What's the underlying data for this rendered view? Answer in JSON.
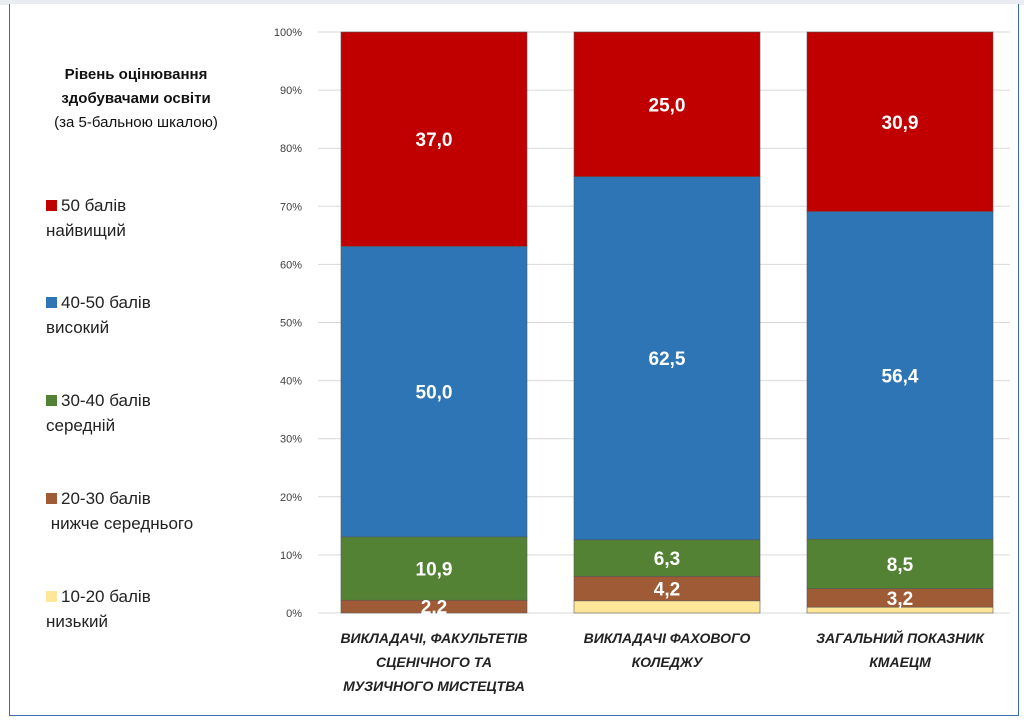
{
  "legend": {
    "title_line1": "Рівень оцінювання",
    "title_line2": "здобувачами освіти",
    "title_line3": "(за 5-бальною шкалою)",
    "items": [
      {
        "label": "50 балів",
        "desc": "найвищий",
        "color": "#c00000"
      },
      {
        "label": "40-50 балів",
        "desc": "високий",
        "color": "#2e75b6"
      },
      {
        "label": "30-40 балів",
        "desc": "середній",
        "color": "#548235"
      },
      {
        "label": "20-30 балів",
        "desc": " нижче середнього",
        "color": "#9e5b35"
      },
      {
        "label": "10-20 балів",
        "desc": "низький",
        "color": "#ffe699"
      }
    ]
  },
  "chart_data": {
    "type": "bar",
    "stacked": "percent",
    "categories": [
      [
        "ВИКЛАДАЧІ, ФАКУЛЬТЕТІВ",
        "СЦЕНІЧНОГО ТА",
        "МУЗИЧНОГО МИСТЕЦТВА"
      ],
      [
        "ВИКЛАДАЧІ ФАХОВОГО",
        "КОЛЕДЖУ"
      ],
      [
        "ЗАГАЛЬНИЙ ПОКАЗНИК",
        "КМАЕЦМ"
      ]
    ],
    "series": [
      {
        "name": "10-20 балів низький",
        "color": "#ffe699",
        "values": [
          0.0,
          2.1,
          1.0
        ],
        "labels": [
          "",
          "",
          ""
        ]
      },
      {
        "name": "20-30 балів нижче середнього",
        "color": "#9e5b35",
        "values": [
          2.2,
          4.2,
          3.2
        ],
        "labels": [
          "2,2",
          "4,2",
          "3,2"
        ]
      },
      {
        "name": "30-40 балів середній",
        "color": "#548235",
        "values": [
          10.9,
          6.3,
          8.5
        ],
        "labels": [
          "10,9",
          "6,3",
          "8,5"
        ]
      },
      {
        "name": "40-50 балів високий",
        "color": "#2e75b6",
        "values": [
          50.0,
          62.5,
          56.4
        ],
        "labels": [
          "50,0",
          "62,5",
          "56,4"
        ]
      },
      {
        "name": "50 балів найвищий",
        "color": "#c00000",
        "values": [
          37.0,
          25.0,
          30.9
        ],
        "labels": [
          "37,0",
          "25,0",
          "30,9"
        ]
      }
    ],
    "ylim": [
      0,
      100
    ],
    "yticks": [
      "0%",
      "10%",
      "20%",
      "30%",
      "40%",
      "50%",
      "60%",
      "70%",
      "80%",
      "90%",
      "100%"
    ],
    "grid": true
  }
}
